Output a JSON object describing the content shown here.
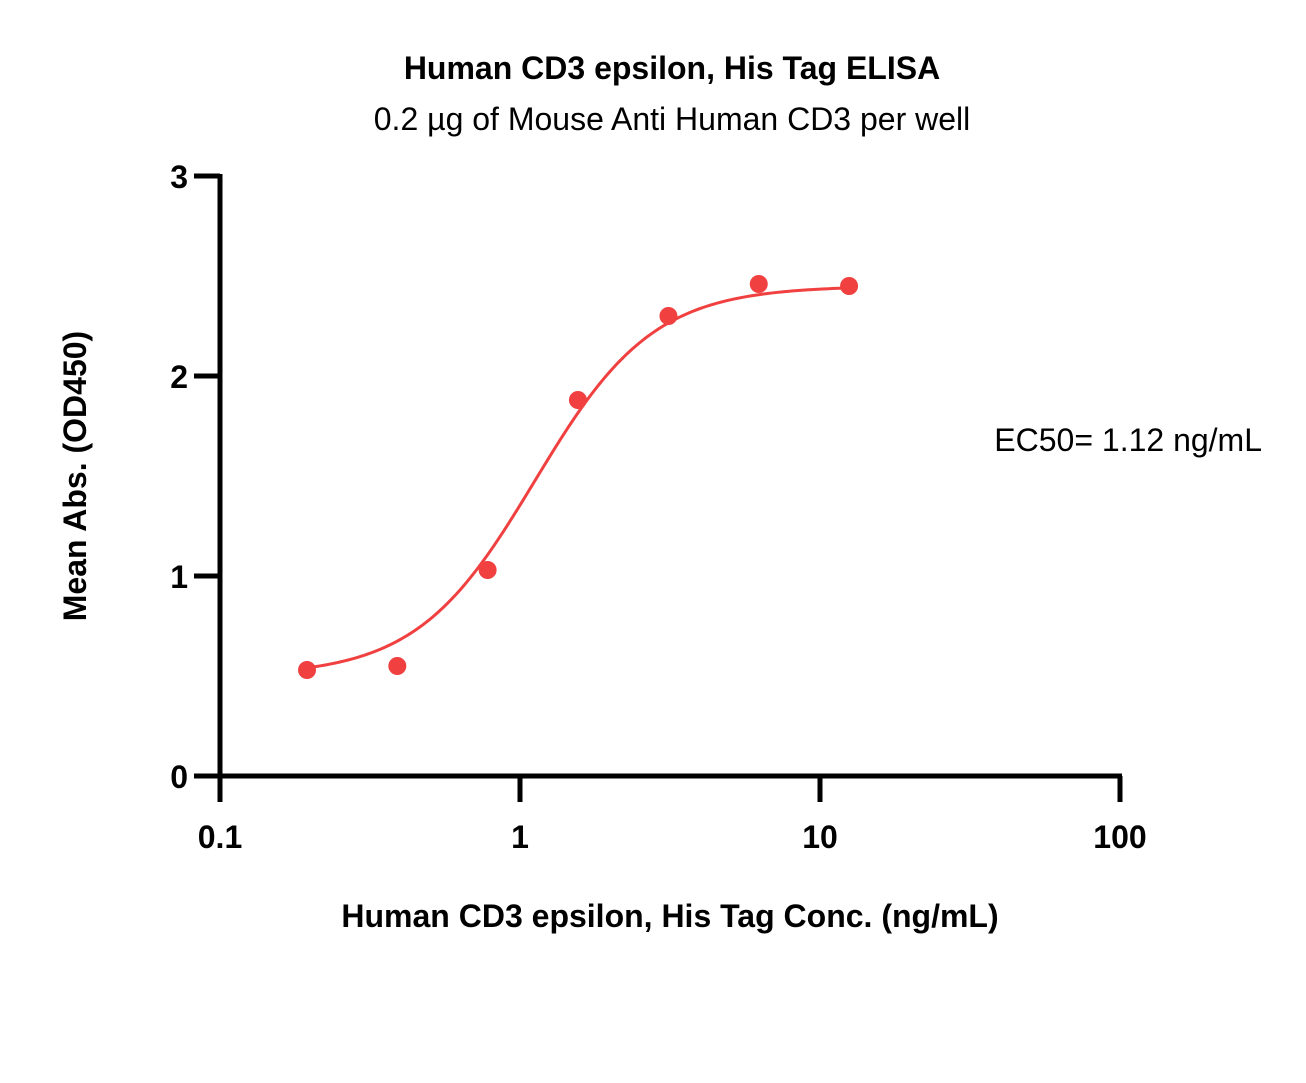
{
  "chart_data": {
    "type": "scatter",
    "title": "Human CD3 epsilon, His Tag ELISA",
    "subtitle": "0.2 µg of Mouse Anti Human CD3 per well",
    "xlabel": "Human CD3 epsilon, His Tag Conc. (ng/mL)",
    "ylabel": "Mean Abs. (OD450)",
    "x_scale": "log",
    "xlim": [
      0.1,
      100
    ],
    "ylim": [
      0,
      3
    ],
    "x_ticks": [
      0.1,
      1,
      10,
      100
    ],
    "x_tick_labels": [
      "0.1",
      "1",
      "10",
      "100"
    ],
    "y_ticks": [
      0,
      1,
      2,
      3
    ],
    "y_tick_labels": [
      "0",
      "1",
      "2",
      "3"
    ],
    "grid": false,
    "series": [
      {
        "color": "#f04040",
        "x": [
          0.195,
          0.39,
          0.78,
          1.56,
          3.125,
          6.25,
          12.5
        ],
        "y": [
          0.53,
          0.55,
          1.03,
          1.88,
          2.3,
          2.46,
          2.45
        ]
      }
    ],
    "fit": {
      "type": "4PL",
      "bottom": 0.5,
      "top": 2.45,
      "ec50": 1.12,
      "hill": 2.2
    },
    "annotations": [
      {
        "text": "EC50= 1.12 ng/mL",
        "position": "right"
      }
    ]
  }
}
